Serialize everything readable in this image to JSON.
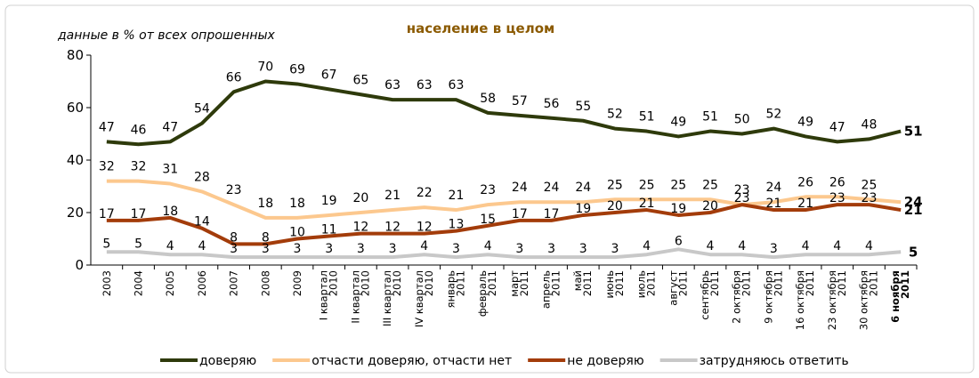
{
  "chart_data": {
    "type": "line",
    "title": "население в целом",
    "subtitle": "данные в % от всех опрошенных",
    "categories": [
      "2003",
      "2004",
      "2005",
      "2006",
      "2007",
      "2008",
      "2009",
      "I квартал 2010",
      "II квартал 2010",
      "III квартал 2010",
      "IV квартал 2010",
      "январь 2011",
      "февраль 2011",
      "март 2011",
      "апрель 2011",
      "май 2011",
      "июнь 2011",
      "июль 2011",
      "август 2011",
      "сентябрь 2011",
      "2 октября 2011",
      "9 октября 2011",
      "16 октября 2011",
      "23 октября 2011",
      "30 октября 2011",
      "6 ноября 2011"
    ],
    "series": [
      {
        "name": "доверяю",
        "color": "#2e3a0b",
        "values": [
          47,
          46,
          47,
          54,
          66,
          70,
          69,
          67,
          65,
          63,
          63,
          63,
          58,
          57,
          56,
          55,
          52,
          51,
          49,
          51,
          50,
          52,
          49,
          47,
          48,
          51
        ]
      },
      {
        "name": "отчасти доверяю, отчасти нет",
        "color": "#fcc88e",
        "values": [
          32,
          32,
          31,
          28,
          23,
          18,
          18,
          19,
          20,
          21,
          22,
          21,
          23,
          24,
          24,
          24,
          25,
          25,
          25,
          25,
          23,
          24,
          26,
          26,
          25,
          24
        ]
      },
      {
        "name": "не доверяю",
        "color": "#a33c0a",
        "values": [
          17,
          17,
          18,
          14,
          8,
          8,
          10,
          11,
          12,
          12,
          12,
          13,
          15,
          17,
          17,
          19,
          20,
          21,
          19,
          20,
          23,
          21,
          21,
          23,
          23,
          21
        ]
      },
      {
        "name": "затрудняюсь ответить",
        "color": "#c8c8c8",
        "values": [
          5,
          5,
          4,
          4,
          3,
          3,
          3,
          3,
          3,
          3,
          4,
          3,
          4,
          3,
          3,
          3,
          3,
          4,
          6,
          4,
          4,
          3,
          4,
          4,
          4,
          5
        ]
      }
    ],
    "ylim": [
      0,
      80
    ],
    "yticks": [
      0,
      20,
      40,
      60,
      80
    ]
  }
}
